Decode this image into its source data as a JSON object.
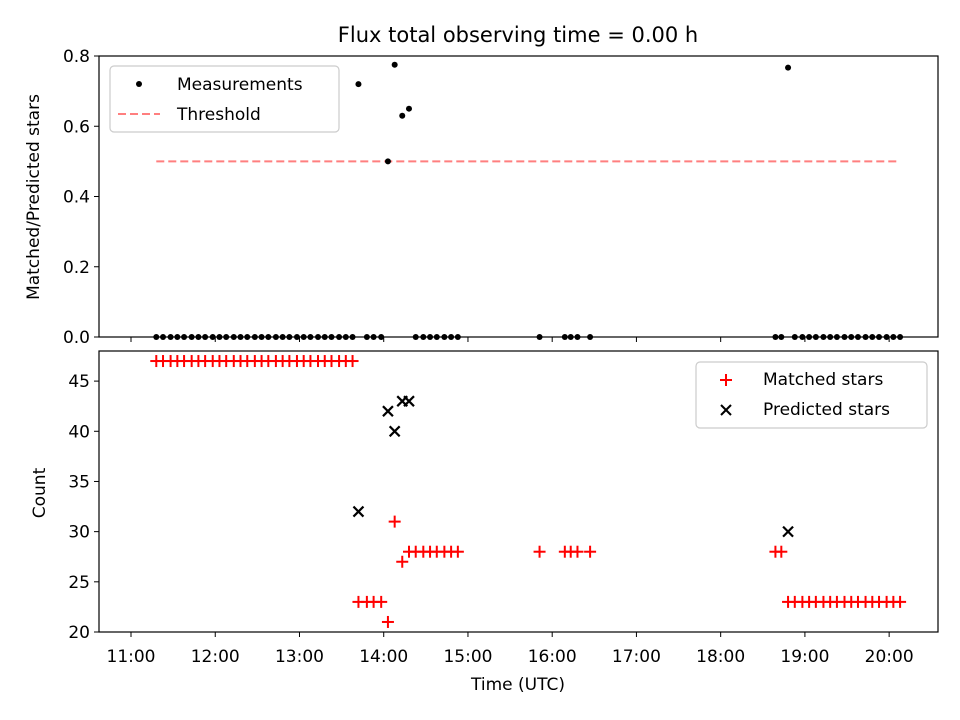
{
  "chart_data": [
    {
      "type": "scatter",
      "title": "Flux total observing time = 0.00 h",
      "xlabel": "",
      "ylabel": "Matched/Predicted stars",
      "ylim": [
        0.0,
        0.8
      ],
      "yticks": [
        0.0,
        0.2,
        0.4,
        0.6,
        0.8
      ],
      "ytick_labels": [
        "0.0",
        "0.2",
        "0.4",
        "0.6",
        "0.8"
      ],
      "legend_position": "upper-left",
      "series": [
        {
          "name": "Measurements",
          "marker": "dot",
          "color": "#000000",
          "x": [
            11.3,
            11.38,
            11.47,
            11.55,
            11.63,
            11.72,
            11.8,
            11.88,
            11.97,
            12.05,
            12.13,
            12.22,
            12.3,
            12.38,
            12.47,
            12.55,
            12.63,
            12.72,
            12.8,
            12.88,
            12.97,
            13.05,
            13.13,
            13.22,
            13.3,
            13.38,
            13.47,
            13.55,
            13.63,
            13.7,
            13.8,
            13.88,
            13.97,
            14.05,
            14.13,
            14.22,
            14.3,
            14.38,
            14.47,
            14.55,
            14.63,
            14.72,
            14.8,
            14.88,
            15.85,
            16.15,
            16.22,
            16.3,
            16.45,
            18.65,
            18.72,
            18.8,
            18.88,
            18.97,
            19.05,
            19.13,
            19.22,
            19.3,
            19.38,
            19.47,
            19.55,
            19.63,
            19.72,
            19.8,
            19.88,
            19.97,
            20.05,
            20.13
          ],
          "y": [
            0,
            0,
            0,
            0,
            0,
            0,
            0,
            0,
            0,
            0,
            0,
            0,
            0,
            0,
            0,
            0,
            0,
            0,
            0,
            0,
            0,
            0,
            0,
            0,
            0,
            0,
            0,
            0,
            0,
            0.72,
            0,
            0,
            0,
            0.5,
            0.775,
            0.63,
            0.65,
            0,
            0,
            0,
            0,
            0,
            0,
            0,
            0,
            0,
            0,
            0,
            0,
            0,
            0,
            0.767,
            0,
            0,
            0,
            0,
            0,
            0,
            0,
            0,
            0,
            0,
            0,
            0,
            0,
            0,
            0,
            0
          ]
        },
        {
          "name": "Threshold",
          "style": "dashed",
          "color": "#ff7f7f",
          "x": [
            11.3,
            20.13
          ],
          "y": [
            0.5,
            0.5
          ]
        }
      ]
    },
    {
      "type": "scatter",
      "title": "",
      "xlabel": "Time (UTC)",
      "ylabel": "Count",
      "ylim": [
        20,
        48
      ],
      "yticks": [
        20,
        25,
        30,
        35,
        40,
        45
      ],
      "ytick_labels": [
        "20",
        "25",
        "30",
        "35",
        "40",
        "45"
      ],
      "xticks": [
        11,
        12,
        13,
        14,
        15,
        16,
        17,
        18,
        19,
        20
      ],
      "xtick_labels": [
        "11:00",
        "12:00",
        "13:00",
        "14:00",
        "15:00",
        "16:00",
        "17:00",
        "18:00",
        "19:00",
        "20:00"
      ],
      "xlim_hours": [
        10.62,
        20.58
      ],
      "legend_position": "upper-right",
      "series": [
        {
          "name": "Matched stars",
          "marker": "plus",
          "color": "#ff0000",
          "x": [
            11.3,
            11.38,
            11.47,
            11.55,
            11.63,
            11.72,
            11.8,
            11.88,
            11.97,
            12.05,
            12.13,
            12.22,
            12.3,
            12.38,
            12.47,
            12.55,
            12.63,
            12.72,
            12.8,
            12.88,
            12.97,
            13.05,
            13.13,
            13.22,
            13.3,
            13.38,
            13.47,
            13.55,
            13.63,
            13.7,
            13.8,
            13.88,
            13.97,
            14.05,
            14.13,
            14.22,
            14.3,
            14.38,
            14.47,
            14.55,
            14.63,
            14.72,
            14.8,
            14.88,
            15.85,
            16.15,
            16.22,
            16.3,
            16.45,
            18.65,
            18.72,
            18.8,
            18.88,
            18.97,
            19.05,
            19.13,
            19.22,
            19.3,
            19.38,
            19.47,
            19.55,
            19.63,
            19.72,
            19.8,
            19.88,
            19.97,
            20.05,
            20.13
          ],
          "y": [
            47,
            47,
            47,
            47,
            47,
            47,
            47,
            47,
            47,
            47,
            47,
            47,
            47,
            47,
            47,
            47,
            47,
            47,
            47,
            47,
            47,
            47,
            47,
            47,
            47,
            47,
            47,
            47,
            47,
            23,
            23,
            23,
            23,
            21,
            31,
            27,
            28,
            28,
            28,
            28,
            28,
            28,
            28,
            28,
            28,
            28,
            28,
            28,
            28,
            28,
            28,
            23,
            23,
            23,
            23,
            23,
            23,
            23,
            23,
            23,
            23,
            23,
            23,
            23,
            23,
            23,
            23,
            23
          ]
        },
        {
          "name": "Predicted stars",
          "marker": "x",
          "color": "#000000",
          "x": [
            13.7,
            14.05,
            14.13,
            14.22,
            14.3,
            18.8
          ],
          "y": [
            32,
            42,
            40,
            43,
            43,
            30
          ]
        }
      ]
    }
  ]
}
